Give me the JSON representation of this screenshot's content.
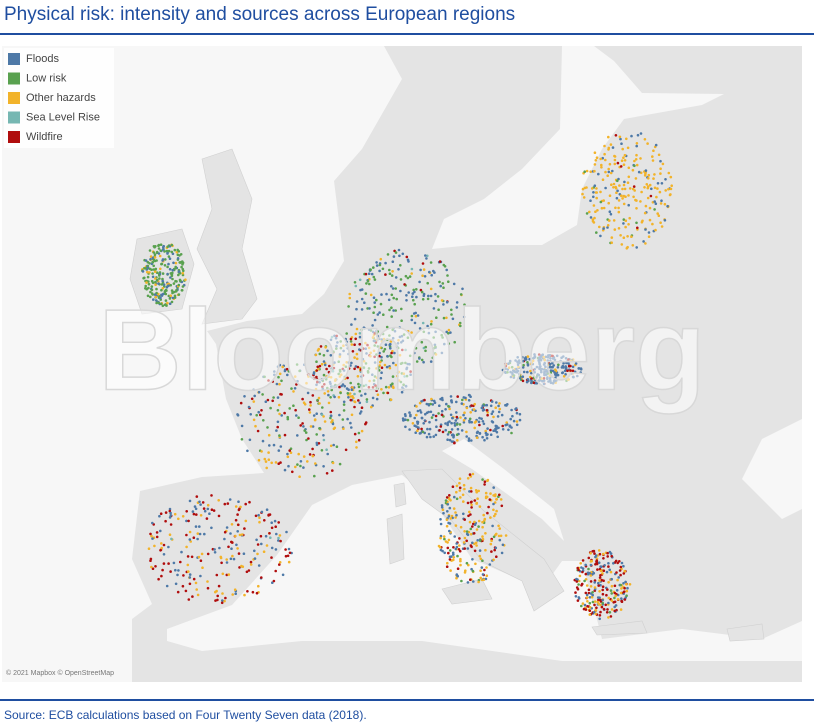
{
  "title": "Physical risk: intensity and sources across European regions",
  "legend": [
    {
      "label": "Floods",
      "color": "#4e79a7"
    },
    {
      "label": "Low risk",
      "color": "#59a14f"
    },
    {
      "label": "Other hazards",
      "color": "#f2b32a"
    },
    {
      "label": "Sea Level Rise",
      "color": "#76b7b2"
    },
    {
      "label": "Wildfire",
      "color": "#b00d0d"
    }
  ],
  "watermark": "Bloomberg",
  "attribution": "© 2021 Mapbox © OpenStreetMap",
  "source": "Source: ECB calculations based on Four Twenty Seven data (2018)."
}
